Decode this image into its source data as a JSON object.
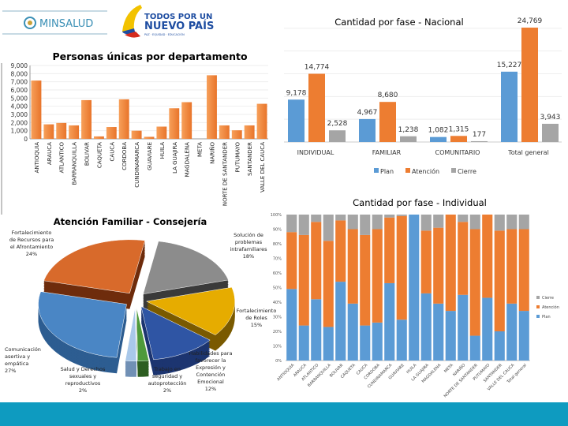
{
  "header": {
    "logo_minsalud": "MINSALUD",
    "logo_gov_line1": "TODOS POR UN",
    "logo_gov_line2": "NUEVO PAÍS",
    "logo_gov_tagline": "PAZ · EQUIDAD · EDUCACIÓN"
  },
  "colors": {
    "plan": "#5B9BD5",
    "atencion": "#ED7D31",
    "cierre": "#A5A5A5",
    "bar": "#F0883E",
    "band": "#0E9BC0"
  },
  "chart_data": [
    {
      "type": "bar",
      "title": "Personas únicas por departamento",
      "categories": [
        "ANTIOQUIA",
        "ARAUCA",
        "ATLANTICO",
        "BARRANQUILLA",
        "BOLIVAR",
        "CAQUETA",
        "CAUCA",
        "CORDOBA",
        "CUNDINAMARCA",
        "GUAVIARE",
        "HUILA",
        "LA GUAJIRA",
        "MAGDALENA",
        "META",
        "NARIÑO",
        "NORTE DE SANTANDER",
        "PUTUMAYO",
        "SANTANDER",
        "VALLE DEL CAUCA"
      ],
      "values": [
        7150,
        1780,
        1950,
        1650,
        4750,
        300,
        1450,
        4850,
        1000,
        250,
        1500,
        3750,
        4500,
        0,
        7800,
        1650,
        1050,
        1650,
        4300
      ],
      "yticks": [
        "0",
        "1,000",
        "2,000",
        "3,000",
        "4,000",
        "5,000",
        "6,000",
        "7,000",
        "8,000",
        "9,000"
      ],
      "ylim": [
        0,
        9000
      ],
      "grid": false
    },
    {
      "type": "bar",
      "title": "Cantidad por fase - Nacional",
      "categories": [
        "INDIVIDUAL",
        "FAMILIAR",
        "COMUNITARIO",
        "Total general"
      ],
      "series": [
        {
          "name": "Plan",
          "values": [
            9178,
            4967,
            1082,
            15227
          ],
          "labels": [
            "9,178",
            "4,967",
            "1,082",
            "15,227"
          ]
        },
        {
          "name": "Atención",
          "values": [
            14774,
            8680,
            1315,
            24769
          ],
          "labels": [
            "14,774",
            "8,680",
            "1,315",
            "24,769"
          ]
        },
        {
          "name": "Cierre",
          "values": [
            2528,
            1238,
            177,
            3943
          ],
          "labels": [
            "2,528",
            "1,238",
            "177",
            "3,943"
          ]
        }
      ],
      "legend": "bottom",
      "grid": true
    },
    {
      "type": "bar",
      "stacked": "percent",
      "title": "Cantidad por fase - Individual",
      "categories": [
        "ANTIOQUIA",
        "ARAUCA",
        "ATLANTICO",
        "BARRANQUILLA",
        "BOLIVAR",
        "CAQUETA",
        "CAUCA",
        "CORDOBA",
        "CUNDINAMARCA",
        "GUAVIARE",
        "HUILA",
        "LA GUAJIRA",
        "MAGDALENA",
        "META",
        "NARIÑO",
        "NORTE DE SANTANDER",
        "PUTUMAYO",
        "SANTANDER",
        "VALLE DEL CAUCA",
        "Total general"
      ],
      "series": [
        {
          "name": "Plan",
          "values": [
            49,
            24,
            42,
            23,
            54,
            39,
            24,
            26,
            53,
            28,
            100,
            46,
            39,
            34,
            45,
            17,
            43,
            20,
            39,
            34
          ]
        },
        {
          "name": "Atención",
          "values": [
            39,
            62,
            53,
            59,
            42,
            51,
            62,
            64,
            45,
            71,
            0,
            43,
            52,
            66,
            50,
            73,
            57,
            69,
            51,
            56
          ]
        },
        {
          "name": "Cierre",
          "values": [
            12,
            14,
            5,
            18,
            4,
            10,
            14,
            10,
            2,
            1,
            0,
            11,
            9,
            0,
            5,
            10,
            0,
            11,
            10,
            10
          ]
        }
      ],
      "yticks": [
        "0%",
        "10%",
        "20%",
        "30%",
        "40%",
        "50%",
        "60%",
        "70%",
        "80%",
        "90%",
        "100%"
      ],
      "ylim": [
        0,
        100
      ],
      "legend": "right"
    },
    {
      "type": "pie",
      "style": "3d-exploded",
      "title": "Atención Familiar - Consejería",
      "slices": [
        {
          "label": [
            "Solución de",
            "problemas",
            "intrafamiliares"
          ],
          "value": 18,
          "pct": "18%",
          "color": "#8C8C8C",
          "depth": "#3a3a3a"
        },
        {
          "label": [
            "Fortalecimiento",
            "de Roles"
          ],
          "value": 15,
          "pct": "15%",
          "color": "#E6AC00",
          "depth": "#7a5a00"
        },
        {
          "label": [
            "Habilidades para",
            "favorecer la",
            "Expresión y",
            "Contención",
            "Emocional"
          ],
          "value": 12,
          "pct": "12%",
          "color": "#2F55A4",
          "depth": "#1c3570"
        },
        {
          "label": [
            "Trabajo en",
            "seguridad y",
            "autoprotección"
          ],
          "value": 2,
          "pct": "2%",
          "color": "#4E9A3A",
          "depth": "#2d5e20"
        },
        {
          "label": [
            "Salud y Derechos",
            "sexuales y",
            "reproductivos"
          ],
          "value": 2,
          "pct": "2%",
          "color": "#A9C8EA",
          "depth": "#7190b5"
        },
        {
          "label": [
            "Comunicación",
            "asertiva y",
            "empática"
          ],
          "value": 27,
          "pct": "27%",
          "color": "#4A86C5",
          "depth": "#2d5d91"
        },
        {
          "label": [
            "Fortalecimiento",
            "de Recursos para",
            "el Afrontamiento"
          ],
          "value": 24,
          "pct": "24%",
          "color": "#D86A2B",
          "depth": "#6e2c0c"
        }
      ]
    }
  ]
}
